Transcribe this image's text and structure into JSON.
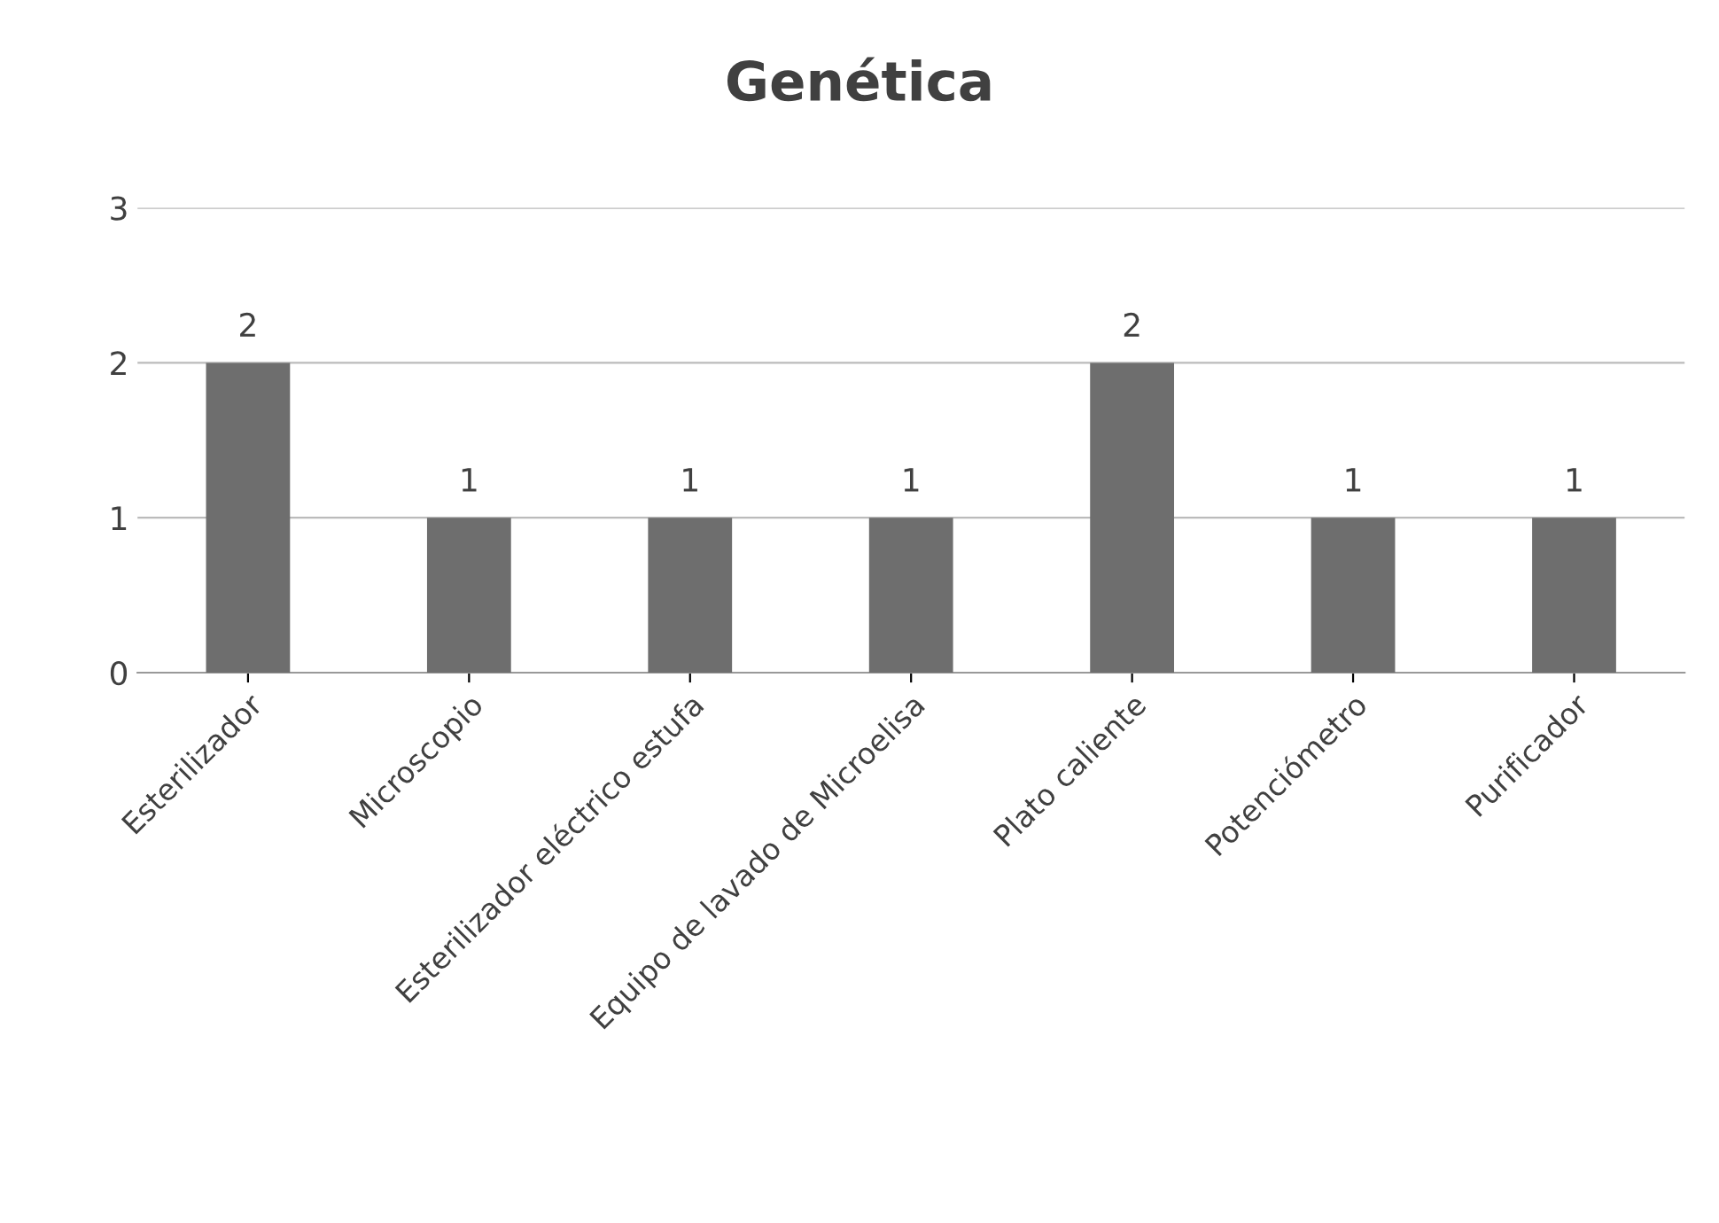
{
  "chart_data": {
    "type": "bar",
    "title": "Genética",
    "categories": [
      "Esterilizador",
      "Microscopio",
      "Esterilizador eléctrico estufa",
      "Equipo de lavado de Microelisa",
      "Plato caliente",
      "Potenciómetro",
      "Purificador"
    ],
    "values": [
      2,
      1,
      1,
      1,
      2,
      1,
      1
    ],
    "color": "#6e6e6e",
    "ylim": [
      0,
      3
    ],
    "yticks": [
      0,
      1,
      2,
      3
    ],
    "grid": "y",
    "data_labels": true
  }
}
